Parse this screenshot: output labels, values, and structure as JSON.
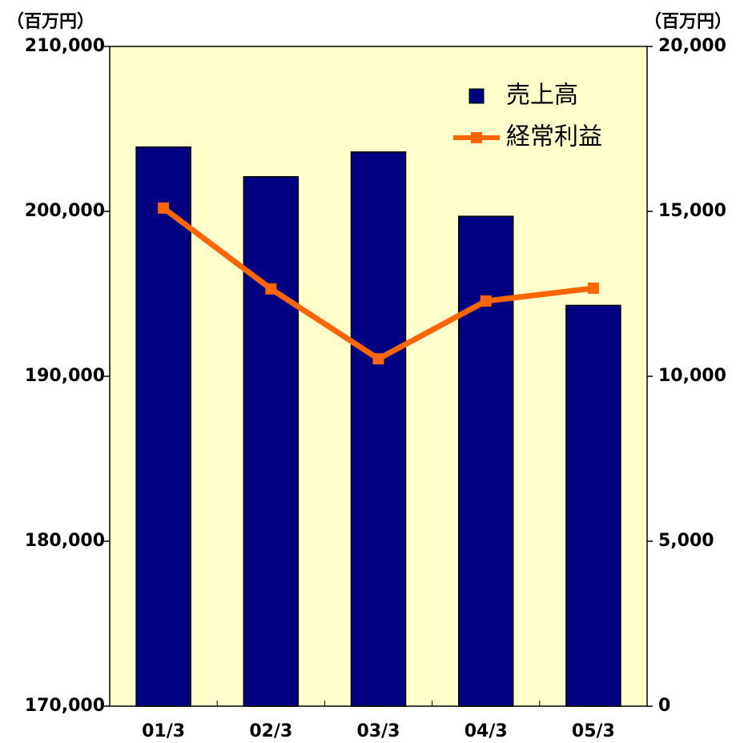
{
  "chart_data": {
    "type": "bar_line",
    "y_label": "（百万円）",
    "y2_label": "（百万円）",
    "categories": [
      "01/3",
      "02/3",
      "03/3",
      "04/3",
      "05/3"
    ],
    "series": [
      {
        "name": "売上高",
        "type": "bar",
        "color": "#000080",
        "values": [
          203900,
          202100,
          203600,
          199700,
          194300
        ]
      },
      {
        "name": "経常利益",
        "type": "line",
        "axis": "y2",
        "color": "#ff6600",
        "values": [
          15100,
          12650,
          10530,
          12280,
          12670
        ]
      }
    ],
    "ylim": [
      170000,
      210000
    ],
    "yticks": [
      {
        "value": 170000,
        "label": "170,000"
      },
      {
        "value": 180000,
        "label": "180,000"
      },
      {
        "value": 190000,
        "label": "190,000"
      },
      {
        "value": 200000,
        "label": "200,000"
      },
      {
        "value": 210000,
        "label": "210,000"
      }
    ],
    "y2lim": [
      0,
      20000
    ],
    "y2ticks": [
      0,
      {
        "value": 5000,
        "label": "5,000"
      },
      {
        "value": 10000,
        "label": "10,000"
      },
      {
        "value": 15000,
        "label": "15,000"
      },
      {
        "value": 20000,
        "label": "20,000"
      }
    ],
    "legend": "upper right",
    "background": "#ffffcc"
  }
}
